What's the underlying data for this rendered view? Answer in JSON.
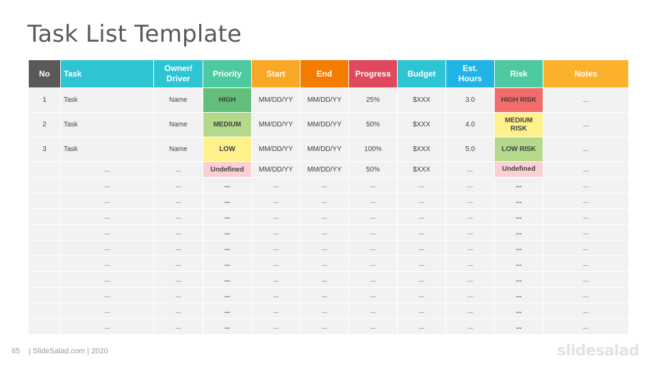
{
  "title": "Task List Template",
  "colors": {
    "no": "#595959",
    "task": "#2ec5d3",
    "owner": "#2ec5d3",
    "priority": "#4dc9a0",
    "start": "#f9a825",
    "end": "#f57c00",
    "progress": "#e0485d",
    "budget": "#2ec5d3",
    "hours": "#1fb4e5",
    "risk": "#4dc9a0",
    "notes": "#fbb12b",
    "high": "#63be7b",
    "medium": "#b5d98a",
    "low": "#fef08a",
    "undefined": "#fccfd4",
    "high_risk": "#f36c6c",
    "medium_risk": "#fef08a",
    "low_risk": "#b5d98a",
    "undefined_risk": "#fccfd4"
  },
  "headers": [
    "No",
    "Task",
    "Owner/ Driver",
    "Priority",
    "Start",
    "End",
    "Progress",
    "Budget",
    "Est. Hours",
    "Risk",
    "Notes"
  ],
  "rows": [
    [
      "1",
      "Task",
      "Name",
      "HIGH",
      "MM/DD/YY",
      "MM/DD/YY",
      "25%",
      "$XXX",
      "3.0",
      "HIGH RISK",
      "..."
    ],
    [
      "2",
      "Task",
      "Name",
      "MEDIUM",
      "MM/DD/YY",
      "MM/DD/YY",
      "50%",
      "$XXX",
      "4.0",
      "MEDIUM RISK",
      "..."
    ],
    [
      "3",
      "Task",
      "Name",
      "LOW",
      "MM/DD/YY",
      "MM/DD/YY",
      "100%",
      "$XXX",
      "5.0",
      "LOW RISK",
      "..."
    ],
    [
      "",
      "...",
      "...",
      "Undefined",
      "MM/DD/YY",
      "MM/DD/YY",
      "50%",
      "$XXX",
      "...",
      "Undefined",
      "..."
    ]
  ],
  "placeholder": "...",
  "footer": {
    "page_number": "65",
    "text": "| SlideSalad.com | 2020",
    "logo": "slidesalad"
  }
}
